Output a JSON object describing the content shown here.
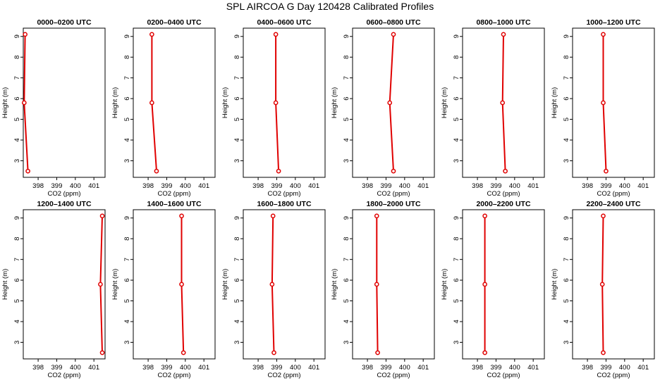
{
  "title": "SPL AIRCOA G  Day 120428  Calibrated Profiles",
  "colors": {
    "series": "#e00000",
    "axis": "#000000",
    "background": "#ffffff"
  },
  "chart_data": [
    {
      "type": "line",
      "title": "0000–0200 UTC",
      "xlabel": "CO2 (ppm)",
      "ylabel": "Height (m)",
      "xlim": [
        397.2,
        401.6
      ],
      "ylim": [
        2.2,
        9.4
      ],
      "xticks": [
        398,
        399,
        400,
        401
      ],
      "yticks": [
        3,
        4,
        5,
        6,
        7,
        8,
        9
      ],
      "grid": false,
      "x": [
        397.3,
        397.25,
        397.45
      ],
      "y": [
        9.1,
        5.8,
        2.5
      ]
    },
    {
      "type": "line",
      "title": "0200–0400 UTC",
      "xlabel": "CO2 (ppm)",
      "ylabel": "Height (m)",
      "xlim": [
        397.2,
        401.6
      ],
      "ylim": [
        2.2,
        9.4
      ],
      "xticks": [
        398,
        399,
        400,
        401
      ],
      "yticks": [
        3,
        4,
        5,
        6,
        7,
        8,
        9
      ],
      "grid": false,
      "x": [
        398.2,
        398.2,
        398.45
      ],
      "y": [
        9.1,
        5.8,
        2.5
      ]
    },
    {
      "type": "line",
      "title": "0400–0600 UTC",
      "xlabel": "CO2 (ppm)",
      "ylabel": "Height (m)",
      "xlim": [
        397.2,
        401.6
      ],
      "ylim": [
        2.2,
        9.4
      ],
      "xticks": [
        398,
        399,
        400,
        401
      ],
      "yticks": [
        3,
        4,
        5,
        6,
        7,
        8,
        9
      ],
      "grid": false,
      "x": [
        398.95,
        398.95,
        399.1
      ],
      "y": [
        9.1,
        5.8,
        2.5
      ]
    },
    {
      "type": "line",
      "title": "0600–0800 UTC",
      "xlabel": "CO2 (ppm)",
      "ylabel": "Height (m)",
      "xlim": [
        397.2,
        401.6
      ],
      "ylim": [
        2.2,
        9.4
      ],
      "xticks": [
        398,
        399,
        400,
        401
      ],
      "yticks": [
        3,
        4,
        5,
        6,
        7,
        8,
        9
      ],
      "grid": false,
      "x": [
        399.4,
        399.2,
        399.4
      ],
      "y": [
        9.1,
        5.8,
        2.5
      ]
    },
    {
      "type": "line",
      "title": "0800–1000 UTC",
      "xlabel": "CO2 (ppm)",
      "ylabel": "Height (m)",
      "xlim": [
        397.2,
        401.6
      ],
      "ylim": [
        2.2,
        9.4
      ],
      "xticks": [
        398,
        399,
        400,
        401
      ],
      "yticks": [
        3,
        4,
        5,
        6,
        7,
        8,
        9
      ],
      "grid": false,
      "x": [
        399.4,
        399.35,
        399.5
      ],
      "y": [
        9.1,
        5.8,
        2.5
      ]
    },
    {
      "type": "line",
      "title": "1000–1200 UTC",
      "xlabel": "CO2 (ppm)",
      "ylabel": "Height (m)",
      "xlim": [
        397.2,
        401.6
      ],
      "ylim": [
        2.2,
        9.4
      ],
      "xticks": [
        398,
        399,
        400,
        401
      ],
      "yticks": [
        3,
        4,
        5,
        6,
        7,
        8,
        9
      ],
      "grid": false,
      "x": [
        398.85,
        398.85,
        399.0
      ],
      "y": [
        9.1,
        5.8,
        2.5
      ]
    },
    {
      "type": "line",
      "title": "1200–1400 UTC",
      "xlabel": "CO2 (ppm)",
      "ylabel": "Height (m)",
      "xlim": [
        397.2,
        401.6
      ],
      "ylim": [
        2.2,
        9.4
      ],
      "xticks": [
        398,
        399,
        400,
        401
      ],
      "yticks": [
        3,
        4,
        5,
        6,
        7,
        8,
        9
      ],
      "grid": false,
      "x": [
        401.45,
        401.35,
        401.45
      ],
      "y": [
        9.1,
        5.8,
        2.5
      ]
    },
    {
      "type": "line",
      "title": "1400–1600 UTC",
      "xlabel": "CO2 (ppm)",
      "ylabel": "Height (m)",
      "xlim": [
        397.2,
        401.6
      ],
      "ylim": [
        2.2,
        9.4
      ],
      "xticks": [
        398,
        399,
        400,
        401
      ],
      "yticks": [
        3,
        4,
        5,
        6,
        7,
        8,
        9
      ],
      "grid": false,
      "x": [
        399.8,
        399.8,
        399.9
      ],
      "y": [
        9.1,
        5.8,
        2.5
      ]
    },
    {
      "type": "line",
      "title": "1600–1800 UTC",
      "xlabel": "CO2 (ppm)",
      "ylabel": "Height (m)",
      "xlim": [
        397.2,
        401.6
      ],
      "ylim": [
        2.2,
        9.4
      ],
      "xticks": [
        398,
        399,
        400,
        401
      ],
      "yticks": [
        3,
        4,
        5,
        6,
        7,
        8,
        9
      ],
      "grid": false,
      "x": [
        398.8,
        398.75,
        398.85
      ],
      "y": [
        9.1,
        5.8,
        2.5
      ]
    },
    {
      "type": "line",
      "title": "1800–2000 UTC",
      "xlabel": "CO2 (ppm)",
      "ylabel": "Height (m)",
      "xlim": [
        397.2,
        401.6
      ],
      "ylim": [
        2.2,
        9.4
      ],
      "xticks": [
        398,
        399,
        400,
        401
      ],
      "yticks": [
        3,
        4,
        5,
        6,
        7,
        8,
        9
      ],
      "grid": false,
      "x": [
        398.5,
        398.5,
        398.55
      ],
      "y": [
        9.1,
        5.8,
        2.5
      ]
    },
    {
      "type": "line",
      "title": "2000–2200 UTC",
      "xlabel": "CO2 (ppm)",
      "ylabel": "Height (m)",
      "xlim": [
        397.2,
        401.6
      ],
      "ylim": [
        2.2,
        9.4
      ],
      "xticks": [
        398,
        399,
        400,
        401
      ],
      "yticks": [
        3,
        4,
        5,
        6,
        7,
        8,
        9
      ],
      "grid": false,
      "x": [
        398.4,
        398.4,
        398.4
      ],
      "y": [
        9.1,
        5.8,
        2.5
      ]
    },
    {
      "type": "line",
      "title": "2200–2400 UTC",
      "xlabel": "CO2 (ppm)",
      "ylabel": "Height (m)",
      "xlim": [
        397.2,
        401.6
      ],
      "ylim": [
        2.2,
        9.4
      ],
      "xticks": [
        398,
        399,
        400,
        401
      ],
      "yticks": [
        3,
        4,
        5,
        6,
        7,
        8,
        9
      ],
      "grid": false,
      "x": [
        398.85,
        398.8,
        398.85
      ],
      "y": [
        9.1,
        5.8,
        2.5
      ]
    }
  ]
}
